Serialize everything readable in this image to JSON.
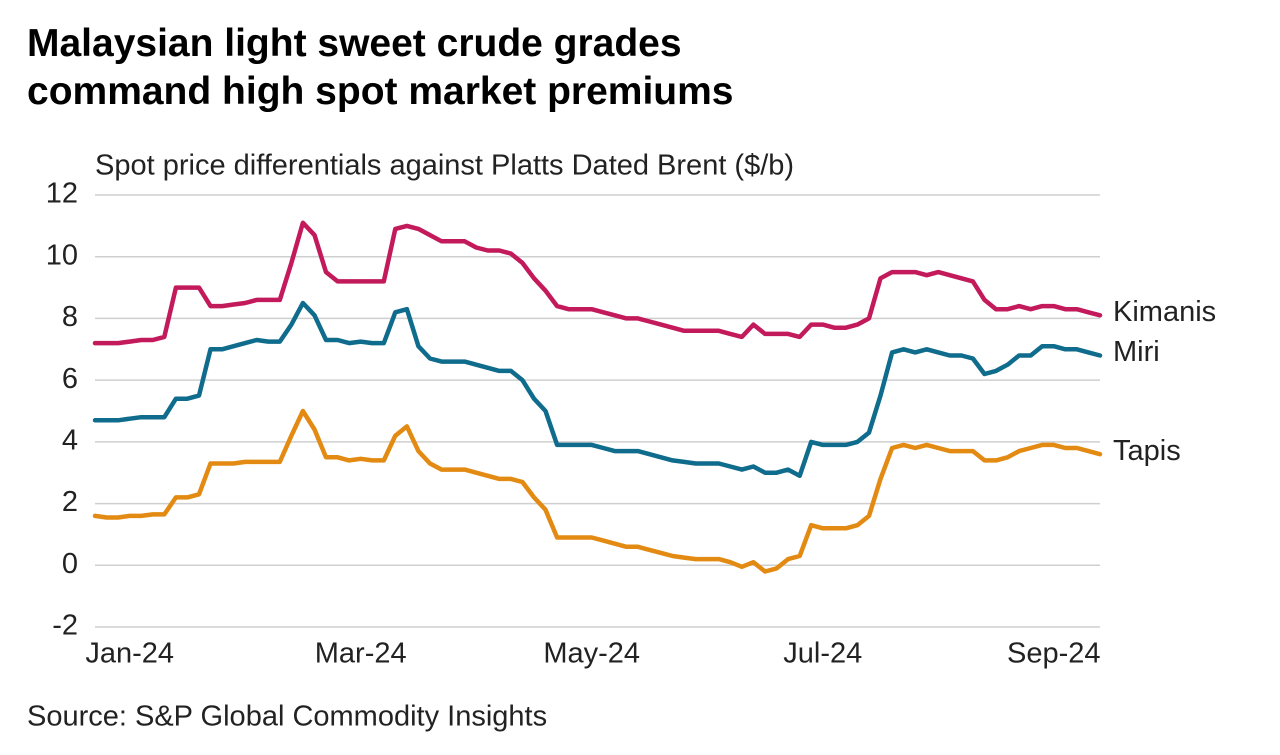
{
  "chart_data": {
    "type": "line",
    "title": "Malaysian light sweet crude grades command high spot market premiums",
    "subtitle": "Spot price differentials against Platts Dated Brent ($/b)",
    "source": "Source: S&P Global Commodity Insights",
    "categories": [
      null,
      null,
      null,
      "Jan-24",
      null,
      null,
      null,
      null,
      null,
      null,
      null,
      null,
      null,
      null,
      null,
      null,
      null,
      null,
      null,
      null,
      null,
      null,
      null,
      "Mar-24",
      null,
      null,
      null,
      null,
      null,
      null,
      null,
      null,
      null,
      null,
      null,
      null,
      null,
      null,
      null,
      null,
      null,
      null,
      null,
      "May-24",
      null,
      null,
      null,
      null,
      null,
      null,
      null,
      null,
      null,
      null,
      null,
      null,
      null,
      null,
      null,
      null,
      null,
      null,
      null,
      "Jul-24",
      null,
      null,
      null,
      null,
      null,
      null,
      null,
      null,
      null,
      null,
      null,
      null,
      null,
      null,
      null,
      null,
      null,
      null,
      null,
      "Sep-24",
      null,
      null,
      null,
      null
    ],
    "series": [
      {
        "name": "Kimanis",
        "color": "#c21a5b",
        "values": [
          7.2,
          7.2,
          7.2,
          7.25,
          7.3,
          7.3,
          7.4,
          9.0,
          9.0,
          9.0,
          8.4,
          8.4,
          8.45,
          8.5,
          8.6,
          8.6,
          8.6,
          9.8,
          11.1,
          10.7,
          9.5,
          9.2,
          9.2,
          9.2,
          9.2,
          9.2,
          10.9,
          11.0,
          10.9,
          10.7,
          10.5,
          10.5,
          10.5,
          10.3,
          10.2,
          10.2,
          10.1,
          9.8,
          9.3,
          8.9,
          8.4,
          8.3,
          8.3,
          8.3,
          8.2,
          8.1,
          8.0,
          8.0,
          7.9,
          7.8,
          7.7,
          7.6,
          7.6,
          7.6,
          7.6,
          7.5,
          7.4,
          7.8,
          7.5,
          7.5,
          7.5,
          7.4,
          7.8,
          7.8,
          7.7,
          7.7,
          7.8,
          8.0,
          9.3,
          9.5,
          9.5,
          9.5,
          9.4,
          9.5,
          9.4,
          9.3,
          9.2,
          8.6,
          8.3,
          8.3,
          8.4,
          8.3,
          8.4,
          8.4,
          8.3,
          8.3,
          8.2,
          8.1
        ]
      },
      {
        "name": "Miri",
        "color": "#106c8c",
        "values": [
          4.7,
          4.7,
          4.7,
          4.75,
          4.8,
          4.8,
          4.8,
          5.4,
          5.4,
          5.5,
          7.0,
          7.0,
          7.1,
          7.2,
          7.3,
          7.25,
          7.25,
          7.8,
          8.5,
          8.1,
          7.3,
          7.3,
          7.2,
          7.25,
          7.2,
          7.2,
          8.2,
          8.3,
          7.1,
          6.7,
          6.6,
          6.6,
          6.6,
          6.5,
          6.4,
          6.3,
          6.3,
          6.0,
          5.4,
          5.0,
          3.9,
          3.9,
          3.9,
          3.9,
          3.8,
          3.7,
          3.7,
          3.7,
          3.6,
          3.5,
          3.4,
          3.35,
          3.3,
          3.3,
          3.3,
          3.2,
          3.1,
          3.2,
          3.0,
          3.0,
          3.1,
          2.9,
          4.0,
          3.9,
          3.9,
          3.9,
          4.0,
          4.3,
          5.5,
          6.9,
          7.0,
          6.9,
          7.0,
          6.9,
          6.8,
          6.8,
          6.7,
          6.2,
          6.3,
          6.5,
          6.8,
          6.8,
          7.1,
          7.1,
          7.0,
          7.0,
          6.9,
          6.8
        ]
      },
      {
        "name": "Tapis",
        "color": "#e38a12",
        "values": [
          1.6,
          1.55,
          1.55,
          1.6,
          1.6,
          1.65,
          1.65,
          2.2,
          2.2,
          2.3,
          3.3,
          3.3,
          3.3,
          3.35,
          3.35,
          3.35,
          3.35,
          4.2,
          5.0,
          4.4,
          3.5,
          3.5,
          3.4,
          3.45,
          3.4,
          3.4,
          4.2,
          4.5,
          3.7,
          3.3,
          3.1,
          3.1,
          3.1,
          3.0,
          2.9,
          2.8,
          2.8,
          2.7,
          2.2,
          1.8,
          0.9,
          0.9,
          0.9,
          0.9,
          0.8,
          0.7,
          0.6,
          0.6,
          0.5,
          0.4,
          0.3,
          0.25,
          0.2,
          0.2,
          0.2,
          0.1,
          -0.05,
          0.1,
          -0.2,
          -0.1,
          0.2,
          0.3,
          1.3,
          1.2,
          1.2,
          1.2,
          1.3,
          1.6,
          2.8,
          3.8,
          3.9,
          3.8,
          3.9,
          3.8,
          3.7,
          3.7,
          3.7,
          3.4,
          3.4,
          3.5,
          3.7,
          3.8,
          3.9,
          3.9,
          3.8,
          3.8,
          3.7,
          3.6
        ]
      }
    ],
    "ylim": [
      -2,
      12
    ],
    "yticks": [
      -2,
      0,
      2,
      4,
      6,
      8,
      10,
      12
    ],
    "grid": true
  }
}
